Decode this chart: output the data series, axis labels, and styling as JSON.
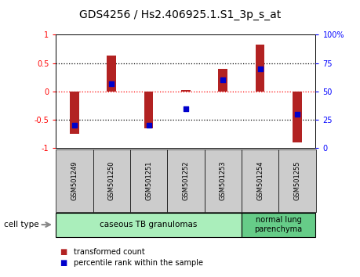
{
  "title": "GDS4256 / Hs2.406925.1.S1_3p_s_at",
  "samples": [
    "GSM501249",
    "GSM501250",
    "GSM501251",
    "GSM501252",
    "GSM501253",
    "GSM501254",
    "GSM501255"
  ],
  "transformed_counts": [
    -0.75,
    0.63,
    -0.65,
    0.02,
    0.4,
    0.82,
    -0.9
  ],
  "percentile_ranks": [
    20,
    57,
    20,
    35,
    60,
    70,
    30
  ],
  "left_ylim": [
    -1,
    1
  ],
  "right_ylim": [
    0,
    100
  ],
  "left_yticks": [
    -1,
    -0.5,
    0,
    0.5,
    1
  ],
  "left_yticklabels": [
    "-1",
    "-0.5",
    "0",
    "0.5",
    "1"
  ],
  "right_yticks": [
    0,
    25,
    50,
    75,
    100
  ],
  "right_yticklabels": [
    "0",
    "25",
    "50",
    "75",
    "100%"
  ],
  "dotted_lines": [
    -0.5,
    0,
    0.5
  ],
  "bar_color": "#b22222",
  "dot_color": "#0000cc",
  "bar_width": 0.25,
  "title_fontsize": 10,
  "tick_fontsize": 7,
  "sample_fontsize": 6,
  "legend_fontsize": 7,
  "cell_fontsize": 7.5,
  "group0_n": 5,
  "group1_n": 2,
  "group0_label": "caseous TB granulomas",
  "group0_color": "#aaeebb",
  "group1_label": "normal lung\nparenchyma",
  "group1_color": "#66cc88",
  "cell_type_label": "cell type"
}
